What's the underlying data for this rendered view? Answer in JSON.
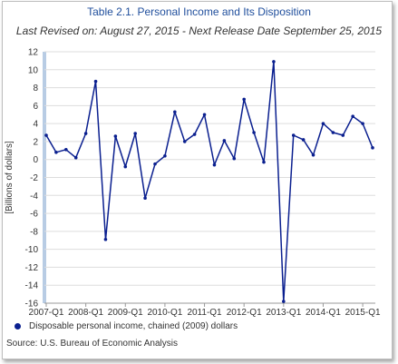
{
  "title": "Table 2.1. Personal Income and Its Disposition",
  "subtitle": "Last Revised on: August 27, 2015 - Next Release Date September 25, 2015",
  "source": "Source: U.S. Bureau of Economic Analysis",
  "colors": {
    "line": "#0a1f8f",
    "title": "#1f4e9c",
    "grid": "#dddddd",
    "axis_bar": "#b8cce4"
  },
  "chart_data": {
    "type": "line",
    "ylabel": "[Billions of dollars]",
    "xlabel": "",
    "ylim": [
      -16,
      12
    ],
    "yticks": [
      12,
      10,
      8,
      6,
      4,
      2,
      0,
      -2,
      -4,
      -6,
      -8,
      -10,
      -12,
      -14,
      -16
    ],
    "grid": true,
    "legend": "bottom-left",
    "x_tick_labels": [
      "2007-Q1",
      "2008-Q1",
      "2009-Q1",
      "2010-Q1",
      "2011-Q1",
      "2012-Q1",
      "2013-Q1",
      "2014-Q1",
      "2015-Q1"
    ],
    "x": [
      "2007-Q1",
      "2007-Q2",
      "2007-Q3",
      "2007-Q4",
      "2008-Q1",
      "2008-Q2",
      "2008-Q3",
      "2008-Q4",
      "2009-Q1",
      "2009-Q2",
      "2009-Q3",
      "2009-Q4",
      "2010-Q1",
      "2010-Q2",
      "2010-Q3",
      "2010-Q4",
      "2011-Q1",
      "2011-Q2",
      "2011-Q3",
      "2011-Q4",
      "2012-Q1",
      "2012-Q2",
      "2012-Q3",
      "2012-Q4",
      "2013-Q1",
      "2013-Q2",
      "2013-Q3",
      "2013-Q4",
      "2014-Q1",
      "2014-Q2",
      "2014-Q3",
      "2014-Q4",
      "2015-Q1",
      "2015-Q2"
    ],
    "series": [
      {
        "name": "Disposable personal income, chained (2009) dollars",
        "values": [
          2.7,
          0.8,
          1.1,
          0.2,
          2.9,
          8.7,
          -8.9,
          2.6,
          -0.8,
          2.9,
          -4.3,
          -0.5,
          0.4,
          5.3,
          2.0,
          2.8,
          5.0,
          -0.6,
          2.1,
          0.1,
          6.7,
          3.0,
          -0.3,
          10.9,
          -15.8,
          2.7,
          2.2,
          0.5,
          4.0,
          3.0,
          2.7,
          4.8,
          4.0,
          1.3
        ]
      }
    ]
  }
}
